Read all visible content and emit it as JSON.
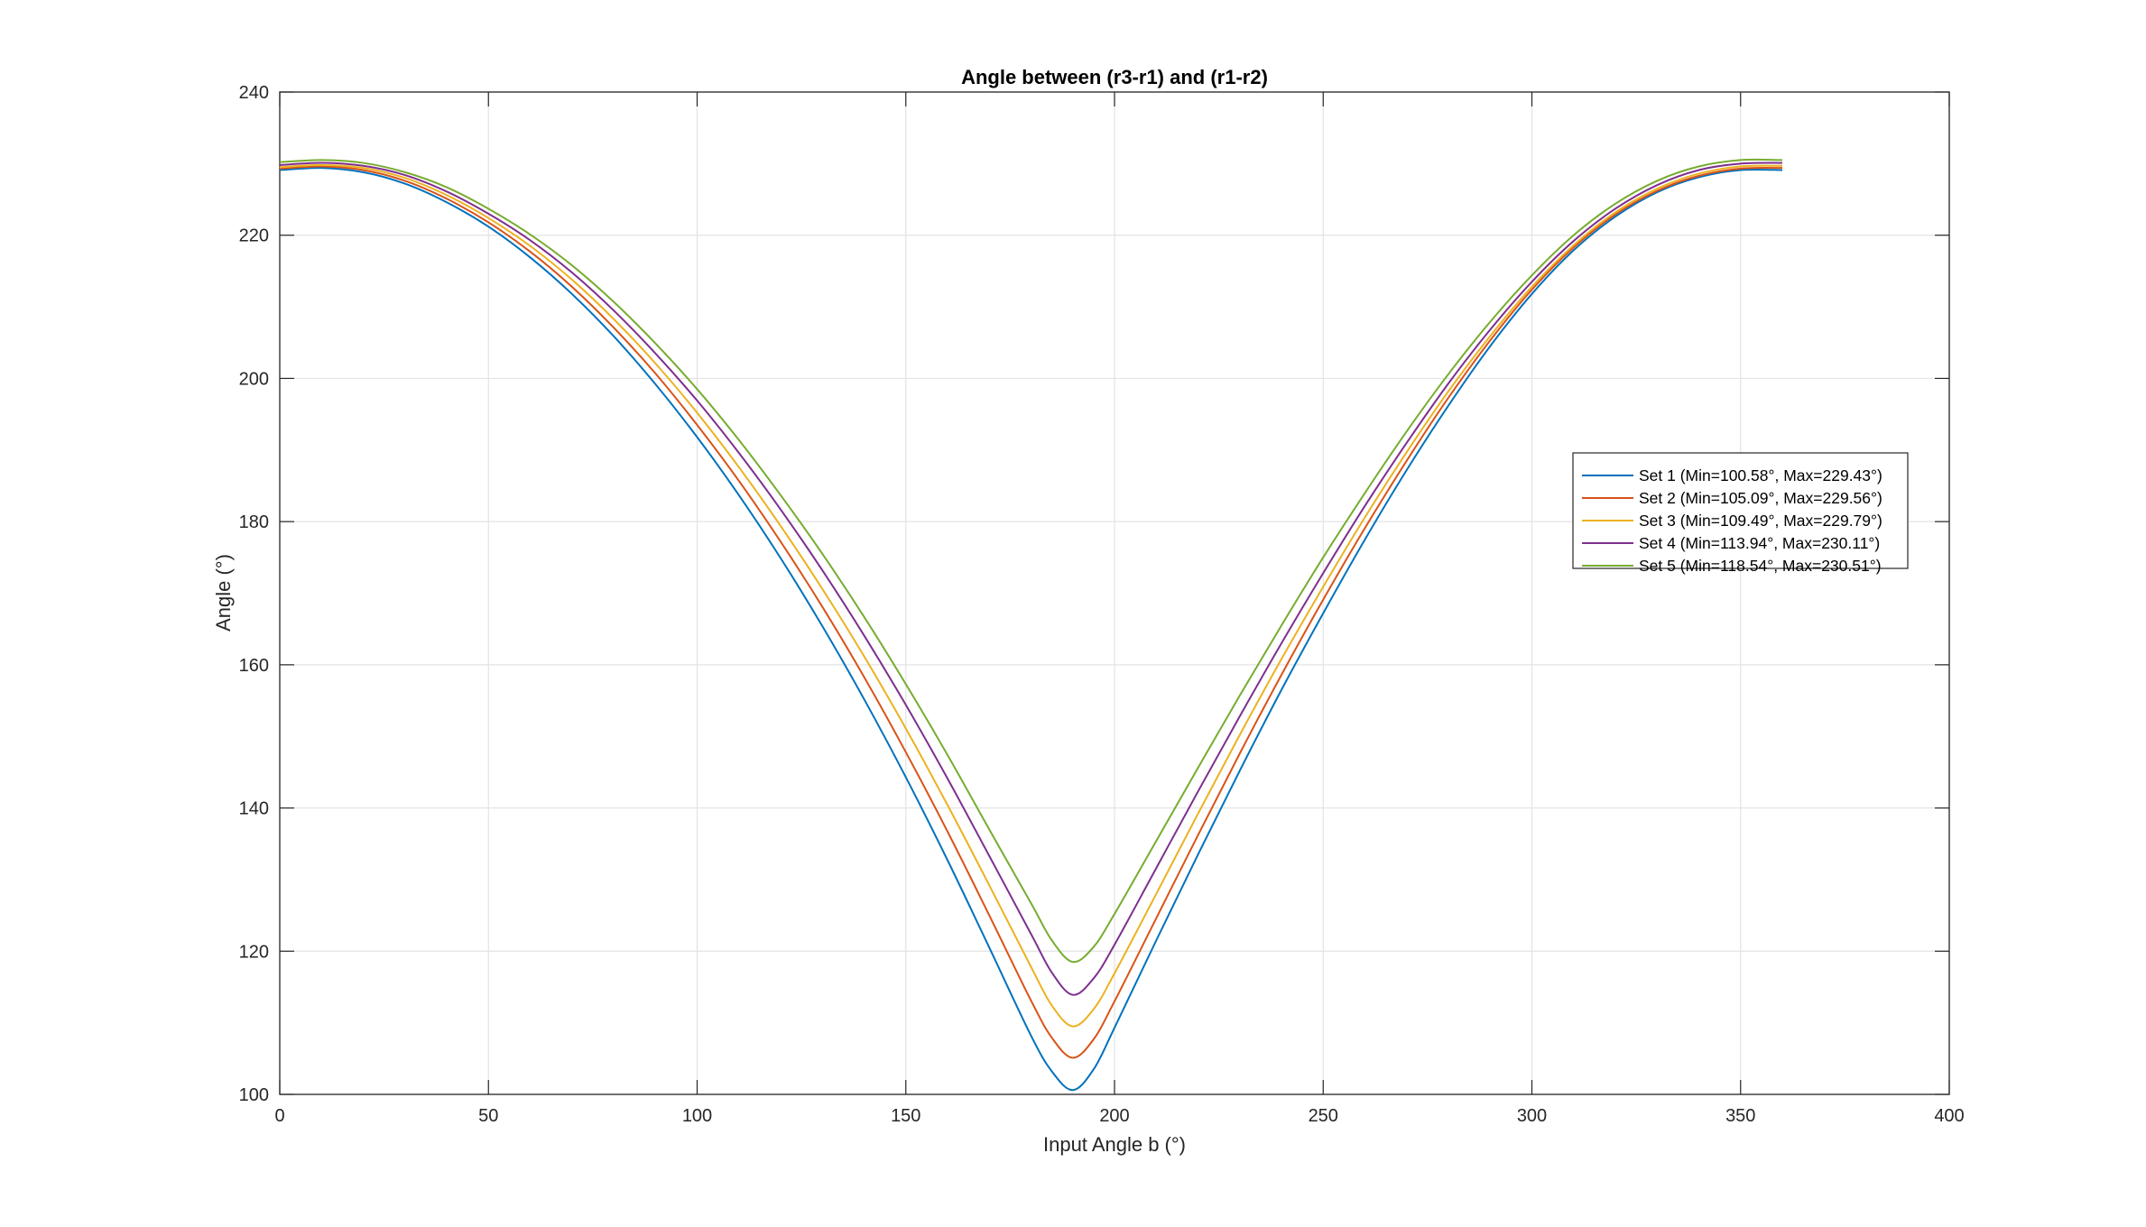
{
  "chart_data": {
    "type": "line",
    "title": "Angle between (r3-r1) and (r1-r2)",
    "xlabel": "Input Angle b (°)",
    "ylabel": "Angle (°)",
    "xlim": [
      0,
      400
    ],
    "ylim": [
      100,
      240
    ],
    "xticks": [
      0,
      50,
      100,
      150,
      200,
      250,
      300,
      350,
      400
    ],
    "yticks": [
      100,
      120,
      140,
      160,
      180,
      200,
      220,
      240
    ],
    "grid": true,
    "legend_position": "right",
    "x": [
      0,
      10,
      20,
      30,
      40,
      50,
      60,
      70,
      80,
      90,
      100,
      110,
      120,
      130,
      140,
      150,
      160,
      170,
      180,
      185,
      190,
      195,
      200,
      210,
      220,
      230,
      240,
      250,
      260,
      270,
      280,
      290,
      300,
      310,
      320,
      330,
      340,
      350,
      360
    ],
    "series": [
      {
        "name": "Set 1 (Min=100.58°, Max=229.43°)",
        "color": "#0072BD",
        "values": [
          229.1,
          229.4,
          228.8,
          227.2,
          224.6,
          221.2,
          216.9,
          211.8,
          205.9,
          199.2,
          191.8,
          183.7,
          174.9,
          165.4,
          155.2,
          144.3,
          132.7,
          120.5,
          108.2,
          103.2,
          100.6,
          103.5,
          109.3,
          121.5,
          133.5,
          145.2,
          156.5,
          167.2,
          177.5,
          187.2,
          196.2,
          204.5,
          211.8,
          217.9,
          222.6,
          226.0,
          228.1,
          229.1,
          229.1
        ]
      },
      {
        "name": "Set 2 (Min=105.09°, Max=229.56°)",
        "color": "#D95319",
        "values": [
          229.3,
          229.6,
          229.1,
          227.6,
          225.1,
          221.8,
          217.7,
          212.8,
          207.1,
          200.7,
          193.5,
          185.7,
          177.2,
          168.1,
          158.3,
          147.8,
          136.7,
          125.0,
          113.1,
          107.9,
          105.1,
          107.7,
          113.0,
          124.6,
          136.2,
          147.6,
          158.6,
          169.1,
          179.1,
          188.5,
          197.3,
          205.3,
          212.4,
          218.3,
          222.9,
          226.2,
          228.3,
          229.3,
          229.4
        ]
      },
      {
        "name": "Set 3 (Min=109.49°, Max=229.79°)",
        "color": "#EDB120",
        "values": [
          229.5,
          229.8,
          229.4,
          228.0,
          225.6,
          222.4,
          218.5,
          213.8,
          208.3,
          202.1,
          195.2,
          187.6,
          179.4,
          170.6,
          161.2,
          151.1,
          140.4,
          129.2,
          117.8,
          112.4,
          109.5,
          111.9,
          116.9,
          128.0,
          139.2,
          150.2,
          160.8,
          170.9,
          180.6,
          189.7,
          198.2,
          205.9,
          212.8,
          218.6,
          223.2,
          226.5,
          228.6,
          229.6,
          229.7
        ]
      },
      {
        "name": "Set 4 (Min=113.94°, Max=230.11°)",
        "color": "#7E2F8E",
        "values": [
          229.8,
          230.1,
          229.7,
          228.4,
          226.1,
          223.0,
          219.3,
          214.8,
          209.5,
          203.5,
          196.9,
          189.6,
          181.7,
          173.2,
          164.1,
          154.4,
          144.1,
          133.3,
          122.4,
          117.0,
          113.9,
          116.2,
          120.9,
          131.6,
          142.3,
          152.8,
          163.0,
          172.8,
          182.2,
          191.0,
          199.3,
          206.8,
          213.5,
          219.2,
          223.7,
          227.0,
          229.1,
          230.0,
          230.1
        ]
      },
      {
        "name": "Set 5 (Min=118.54°, Max=230.51°)",
        "color": "#77AC30",
        "values": [
          230.2,
          230.5,
          230.1,
          228.8,
          226.7,
          223.7,
          220.1,
          215.8,
          210.7,
          204.9,
          198.5,
          191.4,
          183.7,
          175.5,
          166.7,
          157.3,
          147.4,
          137.0,
          126.7,
          121.5,
          118.5,
          120.6,
          125.2,
          135.4,
          145.6,
          155.7,
          165.5,
          175.0,
          184.0,
          192.6,
          200.6,
          207.9,
          214.4,
          220.0,
          224.4,
          227.6,
          229.6,
          230.5,
          230.5
        ]
      }
    ]
  }
}
